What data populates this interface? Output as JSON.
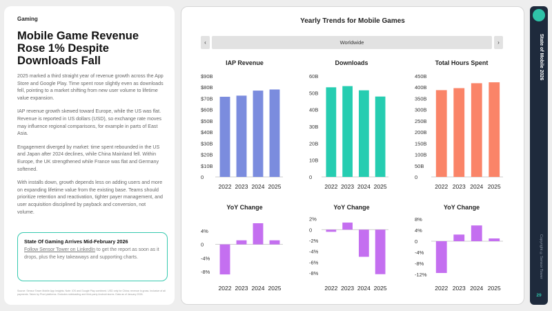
{
  "left": {
    "section": "Gaming",
    "headline": "Mobile Game Revenue Rose 1% Despite Downloads Fall",
    "paragraphs": [
      "2025 marked a third straight year of revenue growth across the App Store and Google Play. Time spent rose slightly even as downloads fell, pointing to a market shifting from new user volume to lifetime value expansion.",
      "IAP revenue growth skewed toward Europe, while the US was flat. Revenue is reported in US dollars (USD), so exchange rate moves may influence regional comparisons, for example in parts of East Asia.",
      "Engagement diverged by market: time spent rebounded in the US and Japan after 2024 declines, while China Mainland fell. Within Europe, the UK strengthened while France was flat and Germany softened.",
      "With installs down, growth depends less on adding users and more on expanding lifetime value from the existing base. Teams should prioritize retention and reactivation, tighter payer management, and user acquisition disciplined by payback and conversion, not volume."
    ],
    "callout": {
      "title": "State Of Gaming Arrives Mid-February 2026",
      "link_text": "Follow Sensor Tower on LinkedIn",
      "body": " to get the report as soon as it drops, plus the key takeaways and supporting charts."
    },
    "footnote": "Source: Sensor Tower Mobile App Insights. Note: iOS and Google Play combined. USD only for China; revenue is gross. Inclusive of all payments. Taken by Pixel platforms. Excludes sideloading and third-party Android stores. Data as of January 2026."
  },
  "main": {
    "title": "Yearly Trends for Mobile Games",
    "selector": {
      "prev": "‹",
      "value": "Worldwide",
      "next": "›"
    }
  },
  "rail": {
    "title": "State of Mobile 2026",
    "copyright": "Copyright ©Sensor Tower",
    "page": "29"
  },
  "colors": {
    "iap": "#7b8cde",
    "downloads": "#26cdb1",
    "hours": "#fa8468",
    "yoy": "#c46ff0",
    "accent": "#2fc2a8",
    "rail": "#1e2a3c"
  },
  "chart_data": [
    {
      "type": "bar",
      "title": "IAP Revenue",
      "categories": [
        "2022",
        "2023",
        "2024",
        "2025"
      ],
      "values": [
        71.5,
        72.5,
        77,
        78
      ],
      "ylim": [
        0,
        90
      ],
      "ticks": [
        0,
        10,
        20,
        30,
        40,
        50,
        60,
        70,
        80,
        90
      ],
      "tick_labels": [
        "0",
        "$10B",
        "$20B",
        "$30B",
        "$40B",
        "$50B",
        "$60B",
        "$70B",
        "$80B",
        "$90B"
      ],
      "color": "iap"
    },
    {
      "type": "bar",
      "title": "Downloads",
      "categories": [
        "2022",
        "2023",
        "2024",
        "2025"
      ],
      "values": [
        53.3,
        54,
        51.5,
        47.8
      ],
      "ylim": [
        0,
        60
      ],
      "ticks": [
        0,
        10,
        20,
        30,
        40,
        50,
        60
      ],
      "tick_labels": [
        "0",
        "10B",
        "20B",
        "30B",
        "40B",
        "50B",
        "60B"
      ],
      "color": "downloads"
    },
    {
      "type": "bar",
      "title": "Total Hours Spent",
      "categories": [
        "2022",
        "2023",
        "2024",
        "2025"
      ],
      "values": [
        387,
        396,
        418,
        422
      ],
      "ylim": [
        0,
        450
      ],
      "ticks": [
        0,
        50,
        100,
        150,
        200,
        250,
        300,
        350,
        400,
        450
      ],
      "tick_labels": [
        "0",
        "50B",
        "100B",
        "150B",
        "200B",
        "250B",
        "300B",
        "350B",
        "400B",
        "450B"
      ],
      "color": "hours"
    },
    {
      "type": "bar",
      "title": "YoY Change",
      "categories": [
        "2022",
        "2023",
        "2024",
        "2025"
      ],
      "values": [
        -8.8,
        1.2,
        6.2,
        1.2
      ],
      "ylim": [
        -10,
        6
      ],
      "ticks": [
        -8,
        -4,
        0,
        4
      ],
      "tick_labels": [
        "-8%",
        "-4%",
        "0",
        "4%"
      ],
      "color": "yoy"
    },
    {
      "type": "bar",
      "title": "YoY Change",
      "categories": [
        "2022",
        "2023",
        "2024",
        "2025"
      ],
      "values": [
        -0.4,
        1.3,
        -5,
        -8.2
      ],
      "ylim": [
        -9,
        2.2
      ],
      "ticks": [
        -8,
        -6,
        -4,
        -2,
        0,
        2
      ],
      "tick_labels": [
        "-8%",
        "-6%",
        "-4%",
        "-2%",
        "0",
        "2%"
      ],
      "color": "yoy"
    },
    {
      "type": "bar",
      "title": "YoY Change",
      "categories": [
        "2022",
        "2023",
        "2024",
        "2025"
      ],
      "values": [
        -11.5,
        2.4,
        5.7,
        1
      ],
      "ylim": [
        -13.5,
        8.5
      ],
      "ticks": [
        -12,
        -8,
        -4,
        0,
        4,
        8
      ],
      "tick_labels": [
        "-12%",
        "-8%",
        "-4%",
        "0",
        "4%",
        "8%"
      ],
      "color": "yoy"
    }
  ]
}
